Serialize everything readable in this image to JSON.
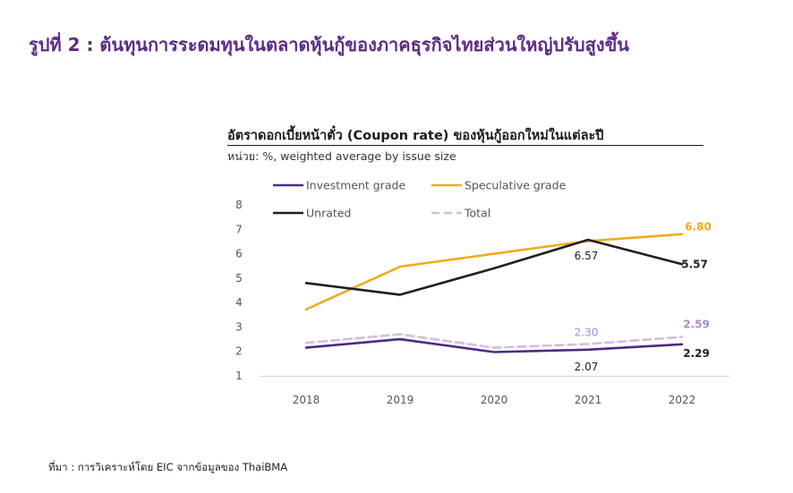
{
  "figure_title": "รูปที่ 2 : ต้นทุนการระดมทุนในตลาดหุ้นกู้ของภาคธุรกิจไทยส่วนใหญ่ปรับสูงขึ้น",
  "source_note": "ที่มา : การวิเคราะห์โดย EIC จากข้อมูลของ ThaiBMA",
  "colors": {
    "title": "#5b2c83",
    "investment": "#4b2a82",
    "speculative": "#f2aa1c",
    "unrated": "#1f1f1f",
    "total": "#cdbfe0",
    "total_label": "#a68bcf"
  },
  "chart_data": {
    "type": "line",
    "title": "อัตราดอกเบี้ยหน้าตั๋ว (Coupon rate) ของหุ้นกู้ออกใหม่ในแต่ละปี",
    "subtitle": "หน่วย: %, weighted average by issue size",
    "categories": [
      "2018",
      "2019",
      "2020",
      "2021",
      "2022"
    ],
    "ylim": [
      1,
      8
    ],
    "yticks": [
      "1",
      "2",
      "3",
      "4",
      "5",
      "6",
      "7",
      "8"
    ],
    "legend_position": "top",
    "series": [
      {
        "name": "Investment grade",
        "color_key": "investment",
        "dashed": false,
        "values": [
          2.15,
          2.5,
          1.97,
          2.07,
          2.29
        ]
      },
      {
        "name": "Speculative grade",
        "color_key": "speculative",
        "dashed": false,
        "values": [
          3.72,
          5.47,
          6.0,
          6.52,
          6.8
        ]
      },
      {
        "name": "Unrated",
        "color_key": "unrated",
        "dashed": false,
        "values": [
          4.8,
          4.32,
          5.4,
          6.57,
          5.57
        ]
      },
      {
        "name": "Total",
        "color_key": "total",
        "dashed": true,
        "values": [
          2.35,
          2.7,
          2.15,
          2.3,
          2.59
        ]
      }
    ],
    "data_labels": [
      {
        "text": "6.80",
        "series": 1,
        "index": 4,
        "color_key": "speculative",
        "bold": true
      },
      {
        "text": "6.57",
        "series": 2,
        "index": 3,
        "color_key": "unrated",
        "bold": false
      },
      {
        "text": "5.57",
        "series": 2,
        "index": 4,
        "color_key": "unrated",
        "bold": true
      },
      {
        "text": "2.30",
        "series": 3,
        "index": 3,
        "color_key": "total_label",
        "bold": false
      },
      {
        "text": "2.59",
        "series": 3,
        "index": 4,
        "color_key": "total_label",
        "bold": true
      },
      {
        "text": "2.07",
        "series": 0,
        "index": 3,
        "color_key": "unrated",
        "bold": false
      },
      {
        "text": "2.29",
        "series": 0,
        "index": 4,
        "color_key": "unrated",
        "bold": true
      }
    ]
  }
}
